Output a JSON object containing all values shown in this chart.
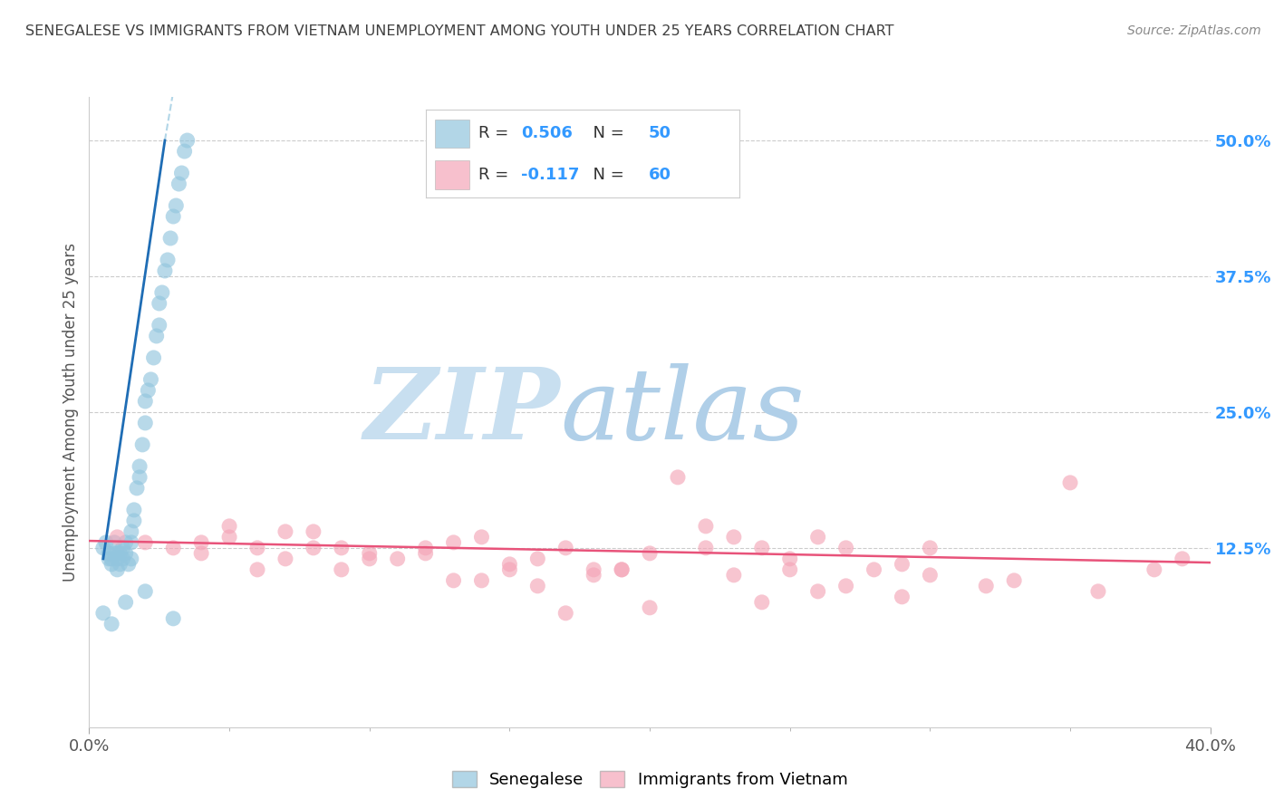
{
  "title": "SENEGALESE VS IMMIGRANTS FROM VIETNAM UNEMPLOYMENT AMONG YOUTH UNDER 25 YEARS CORRELATION CHART",
  "source": "Source: ZipAtlas.com",
  "ylabel": "Unemployment Among Youth under 25 years",
  "xlim": [
    0.0,
    0.4
  ],
  "ylim": [
    -0.04,
    0.54
  ],
  "xticks": [
    0.0,
    0.4
  ],
  "xtick_labels": [
    "0.0%",
    "40.0%"
  ],
  "yticks_right": [
    0.125,
    0.25,
    0.375,
    0.5
  ],
  "ytick_labels_right": [
    "12.5%",
    "25.0%",
    "37.5%",
    "50.0%"
  ],
  "R_blue": 0.506,
  "N_blue": 50,
  "R_pink": -0.117,
  "N_pink": 60,
  "blue_color": "#92c5de",
  "pink_color": "#f4a6b8",
  "blue_line_color": "#1f6db5",
  "pink_line_color": "#e8537a",
  "blue_dash_color": "#92c5de",
  "watermark_ZIP": "#c8dff0",
  "watermark_atlas": "#b0cfe8",
  "legend_label_blue": "Senegalese",
  "legend_label_pink": "Immigrants from Vietnam",
  "background_color": "#ffffff",
  "grid_color": "#cccccc",
  "title_color": "#404040",
  "axis_label_color": "#555555",
  "right_tick_color": "#3399ff",
  "legend_R_color": "#333333",
  "legend_N_color": "#3399ff",
  "blue_scatter_x": [
    0.005,
    0.006,
    0.007,
    0.007,
    0.008,
    0.008,
    0.009,
    0.009,
    0.01,
    0.01,
    0.01,
    0.011,
    0.011,
    0.012,
    0.012,
    0.013,
    0.013,
    0.014,
    0.015,
    0.015,
    0.015,
    0.016,
    0.016,
    0.017,
    0.018,
    0.018,
    0.019,
    0.02,
    0.02,
    0.021,
    0.022,
    0.023,
    0.024,
    0.025,
    0.025,
    0.026,
    0.027,
    0.028,
    0.029,
    0.03,
    0.031,
    0.032,
    0.033,
    0.034,
    0.035,
    0.005,
    0.008,
    0.013,
    0.02,
    0.03
  ],
  "blue_scatter_y": [
    0.125,
    0.13,
    0.115,
    0.12,
    0.11,
    0.115,
    0.13,
    0.12,
    0.105,
    0.115,
    0.12,
    0.11,
    0.12,
    0.125,
    0.115,
    0.13,
    0.12,
    0.11,
    0.14,
    0.13,
    0.115,
    0.16,
    0.15,
    0.18,
    0.19,
    0.2,
    0.22,
    0.24,
    0.26,
    0.27,
    0.28,
    0.3,
    0.32,
    0.33,
    0.35,
    0.36,
    0.38,
    0.39,
    0.41,
    0.43,
    0.44,
    0.46,
    0.47,
    0.49,
    0.5,
    0.065,
    0.055,
    0.075,
    0.085,
    0.06
  ],
  "pink_scatter_x": [
    0.01,
    0.02,
    0.03,
    0.04,
    0.05,
    0.06,
    0.07,
    0.08,
    0.09,
    0.1,
    0.11,
    0.12,
    0.13,
    0.14,
    0.15,
    0.16,
    0.17,
    0.18,
    0.19,
    0.2,
    0.21,
    0.22,
    0.23,
    0.24,
    0.25,
    0.26,
    0.27,
    0.28,
    0.29,
    0.3,
    0.05,
    0.08,
    0.12,
    0.15,
    0.18,
    0.22,
    0.25,
    0.3,
    0.35,
    0.38,
    0.04,
    0.07,
    0.1,
    0.13,
    0.16,
    0.19,
    0.23,
    0.26,
    0.29,
    0.32,
    0.06,
    0.09,
    0.14,
    0.17,
    0.2,
    0.24,
    0.27,
    0.33,
    0.36,
    0.39
  ],
  "pink_scatter_y": [
    0.135,
    0.13,
    0.125,
    0.12,
    0.135,
    0.125,
    0.115,
    0.14,
    0.125,
    0.12,
    0.115,
    0.125,
    0.13,
    0.135,
    0.11,
    0.115,
    0.125,
    0.1,
    0.105,
    0.12,
    0.19,
    0.145,
    0.135,
    0.125,
    0.115,
    0.135,
    0.125,
    0.105,
    0.11,
    0.125,
    0.145,
    0.125,
    0.12,
    0.105,
    0.105,
    0.125,
    0.105,
    0.1,
    0.185,
    0.105,
    0.13,
    0.14,
    0.115,
    0.095,
    0.09,
    0.105,
    0.1,
    0.085,
    0.08,
    0.09,
    0.105,
    0.105,
    0.095,
    0.065,
    0.07,
    0.075,
    0.09,
    0.095,
    0.085,
    0.115
  ]
}
